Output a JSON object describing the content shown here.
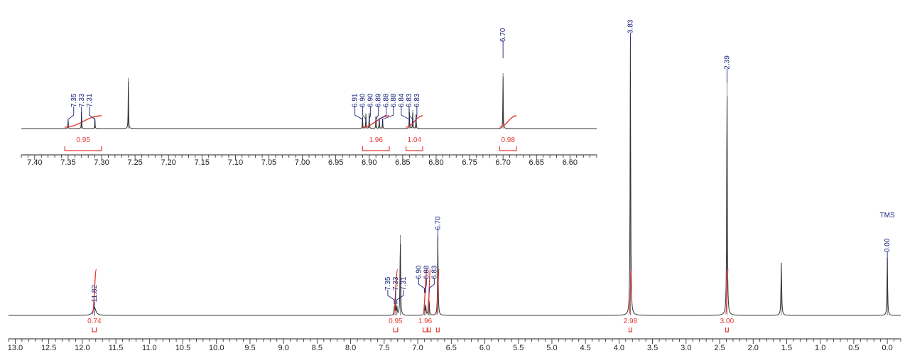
{
  "chart_data": [
    {
      "id": "inset",
      "type": "line",
      "title": "",
      "xlabel": "",
      "ylabel": "",
      "xlim": [
        7.42,
        6.56
      ],
      "x_reversed": true,
      "x_ticks": [
        "7.40",
        "7.35",
        "7.30",
        "7.25",
        "7.20",
        "7.15",
        "7.10",
        "7.05",
        "7.00",
        "6.95",
        "6.90",
        "6.85",
        "6.80",
        "6.75",
        "6.70",
        "6.65",
        "6.60"
      ],
      "peaks": [
        {
          "ppm": 7.35,
          "h": 0.1
        },
        {
          "ppm": 7.33,
          "h": 0.18
        },
        {
          "ppm": 7.31,
          "h": 0.12
        },
        {
          "ppm": 7.26,
          "h": 0.55
        },
        {
          "ppm": 6.91,
          "h": 0.13
        },
        {
          "ppm": 6.905,
          "h": 0.16
        },
        {
          "ppm": 6.9,
          "h": 0.17
        },
        {
          "ppm": 6.89,
          "h": 0.14
        },
        {
          "ppm": 6.885,
          "h": 0.12
        },
        {
          "ppm": 6.88,
          "h": 0.11
        },
        {
          "ppm": 6.84,
          "h": 0.22
        },
        {
          "ppm": 6.835,
          "h": 0.2
        },
        {
          "ppm": 6.83,
          "h": 0.16
        },
        {
          "ppm": 6.7,
          "h": 0.6
        }
      ],
      "peak_labels": {
        "groups": [
          {
            "labels": [
              "7.35",
              "7.33",
              "7.31"
            ],
            "ppms": [
              7.35,
              7.33,
              7.31
            ]
          },
          {
            "labels": [
              "6.91",
              "6.90",
              "6.90",
              "6.89",
              "6.88"
            ],
            "ppms": [
              6.91,
              6.905,
              6.9,
              6.89,
              6.885
            ]
          },
          {
            "labels": [
              "6.88",
              "6.84",
              "6.83",
              "6.83"
            ],
            "ppms": [
              6.88,
              6.84,
              6.835,
              6.83
            ]
          },
          {
            "labels": [
              "6.70"
            ],
            "ppms": [
              6.7
            ]
          }
        ]
      },
      "integrals": [
        {
          "from": 7.355,
          "to": 7.3,
          "value": "0.95"
        },
        {
          "from": 6.91,
          "to": 6.87,
          "value": "1.96"
        },
        {
          "from": 6.845,
          "to": 6.82,
          "value": "1.04"
        },
        {
          "from": 6.705,
          "to": 6.68,
          "value": "0.98"
        }
      ]
    },
    {
      "id": "main",
      "type": "line",
      "title": "",
      "xlabel": "",
      "ylabel": "",
      "xlim": [
        13.1,
        -0.2
      ],
      "x_reversed": true,
      "x_ticks": [
        "13.0",
        "12.5",
        "12.0",
        "11.5",
        "11.0",
        "10.5",
        "10.0",
        "9.5",
        "9.0",
        "8.5",
        "8.0",
        "7.5",
        "7.0",
        "6.5",
        "6.0",
        "5.5",
        "5.0",
        "4.5",
        "4.0",
        "3.5",
        "3.0",
        "2.5",
        "2.0",
        "1.5",
        "1.0",
        "0.5",
        "0.0"
      ],
      "peaks": [
        {
          "ppm": 11.82,
          "h": 0.03,
          "w": 0.025
        },
        {
          "ppm": 7.35,
          "h": 0.03
        },
        {
          "ppm": 7.33,
          "h": 0.04
        },
        {
          "ppm": 7.31,
          "h": 0.03
        },
        {
          "ppm": 7.26,
          "h": 0.29
        },
        {
          "ppm": 6.9,
          "h": 0.04
        },
        {
          "ppm": 6.88,
          "h": 0.035
        },
        {
          "ppm": 6.84,
          "h": 0.05
        },
        {
          "ppm": 6.83,
          "h": 0.045
        },
        {
          "ppm": 6.7,
          "h": 0.29
        },
        {
          "ppm": 3.83,
          "h": 1.0
        },
        {
          "ppm": 2.39,
          "h": 0.87
        },
        {
          "ppm": 1.58,
          "h": 0.19,
          "w": 0.006
        },
        {
          "ppm": 0.0,
          "h": 0.21
        }
      ],
      "peak_labels": {
        "groups": [
          {
            "labels": [
              "11.82"
            ],
            "ppms": [
              11.82
            ]
          },
          {
            "labels": [
              "7.35",
              "7.33",
              "7.31"
            ],
            "ppms": [
              7.35,
              7.33,
              7.31
            ]
          },
          {
            "labels": [
              "6.90",
              "6.88",
              "6.83"
            ],
            "ppms": [
              6.9,
              6.88,
              6.83
            ]
          },
          {
            "labels": [
              "6.70"
            ],
            "ppms": [
              6.7
            ]
          },
          {
            "labels": [
              "3.83"
            ],
            "ppms": [
              3.83
            ]
          },
          {
            "labels": [
              "2.39"
            ],
            "ppms": [
              2.39
            ]
          },
          {
            "labels": [
              "0.00"
            ],
            "ppms": [
              0.0
            ]
          }
        ],
        "reference": {
          "label": "TMS",
          "ppm": 0.0
        }
      },
      "integrals": [
        {
          "from": 11.85,
          "to": 11.79,
          "value": "0.74"
        },
        {
          "from": 7.36,
          "to": 7.3,
          "value": "0.95"
        },
        {
          "from": 6.92,
          "to": 6.86,
          "value": "1.96"
        },
        {
          "from": 6.85,
          "to": 6.81,
          "value": ""
        },
        {
          "from": 6.72,
          "to": 6.68,
          "value": ""
        },
        {
          "from": 3.85,
          "to": 3.81,
          "value": "2.98"
        },
        {
          "from": 2.41,
          "to": 2.37,
          "value": "3.00"
        }
      ]
    }
  ],
  "colors": {
    "trace": "#333333",
    "peak_label": "#1a237e",
    "integral": "#e53935",
    "axis": "#222222"
  }
}
